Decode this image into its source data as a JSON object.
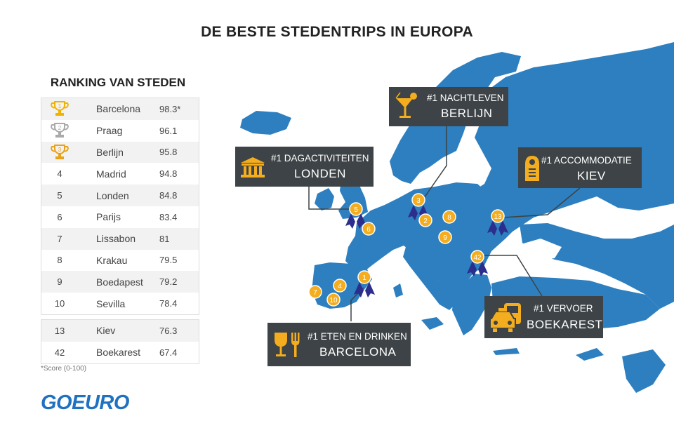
{
  "title": "DE BESTE STEDENTRIPS IN EUROPA",
  "ranking": {
    "heading": "RANKING VAN STEDEN",
    "rows": [
      {
        "rank": "1",
        "city": "Barcelona",
        "score": "98.3*",
        "trophy": "gold"
      },
      {
        "rank": "2",
        "city": "Praag",
        "score": "96.1",
        "trophy": "silver"
      },
      {
        "rank": "3",
        "city": "Berlijn",
        "score": "95.8",
        "trophy": "bronze"
      },
      {
        "rank": "4",
        "city": "Madrid",
        "score": "94.8"
      },
      {
        "rank": "5",
        "city": "Londen",
        "score": "84.8"
      },
      {
        "rank": "6",
        "city": "Parijs",
        "score": "83.4"
      },
      {
        "rank": "7",
        "city": "Lissabon",
        "score": "81"
      },
      {
        "rank": "8",
        "city": "Krakau",
        "score": "79.5"
      },
      {
        "rank": "9",
        "city": "Boedapest",
        "score": "79.2"
      },
      {
        "rank": "10",
        "city": "Sevilla",
        "score": "78.4"
      }
    ],
    "extra_rows": [
      {
        "rank": "13",
        "city": "Kiev",
        "score": "76.3"
      },
      {
        "rank": "42",
        "city": "Boekarest",
        "score": "67.4"
      }
    ],
    "footnote": "*Score (0-100)"
  },
  "logo": "GOEURO",
  "callouts": {
    "nightlife": {
      "category": "#1 NACHTLEVEN",
      "city": "BERLIJN",
      "icon": "cocktail-icon"
    },
    "day": {
      "category": "#1 DAGACTIVITEITEN",
      "city": "LONDEN",
      "icon": "museum-icon"
    },
    "accommodation": {
      "category": "#1 ACCOMMODATIE",
      "city": "KIEV",
      "icon": "door-hanger-icon"
    },
    "transport": {
      "category": "#1 VERVOER",
      "city": "BOEKAREST",
      "icon": "taxi-icon"
    },
    "food": {
      "category": "#1 ETEN EN DRINKEN",
      "city": "BARCELONA",
      "icon": "wine-fork-icon"
    }
  },
  "markers": [
    "1",
    "2",
    "3",
    "4",
    "5",
    "6",
    "7",
    "8",
    "9",
    "10",
    "13",
    "42"
  ],
  "colors": {
    "sea": "#ffffff",
    "land": "#2d7fc0",
    "marker": "#f3ad1f",
    "ribbon": "#2b2e8c",
    "callout": "#3d4346",
    "logo": "#1f72c1"
  }
}
